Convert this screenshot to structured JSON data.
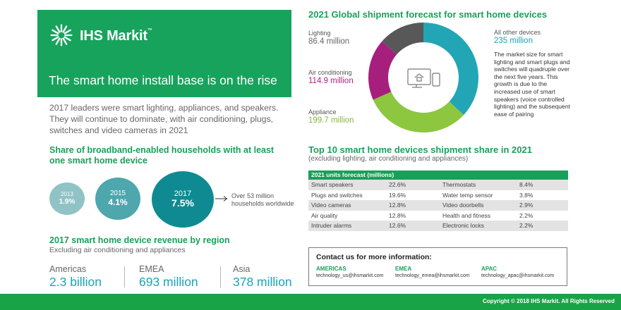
{
  "hero": {
    "brand": "IHS Markit",
    "title": "The smart home install base is on the rise",
    "colors": {
      "background": "#17a35c"
    }
  },
  "intro": "2017 leaders were smart lighting, appliances, and speakers. They will continue to dominate, with air conditioning, plugs, switches and video cameras in 2021",
  "broadband": {
    "title": "Share of broadband-enabled households with at least one smart home device",
    "bubbles": [
      {
        "year": "2013",
        "value": "1.9%",
        "color": "#8fc3c6"
      },
      {
        "year": "2015",
        "value": "4.1%",
        "color": "#4da7ad"
      },
      {
        "year": "2017",
        "value": "7.5%",
        "color": "#0f8a92"
      }
    ],
    "note": "Over 53 million households worldwide"
  },
  "revenue": {
    "title": "2017 smart home device revenue by region",
    "subtitle": "Excluding air conditioning and appliances",
    "regions": [
      {
        "name": "Americas",
        "value": "2.3 billion"
      },
      {
        "name": "EMEA",
        "value": "693 million"
      },
      {
        "name": "Asia",
        "value": "378 million"
      }
    ]
  },
  "forecast": {
    "title": "2021 Global shipment forecast for smart home devices",
    "segments": [
      {
        "label": "All other devices",
        "value": "235 million",
        "amount": 235,
        "color": "#22a6b6"
      },
      {
        "label": "Appliance",
        "value": "199.7 million",
        "amount": 199.7,
        "color": "#8dc63f"
      },
      {
        "label": "Air conditioning",
        "value": "114.9 million",
        "amount": 114.9,
        "color": "#a61f7d"
      },
      {
        "label": "Lighting",
        "value": "86.4 million",
        "amount": 86.4,
        "color": "#585858"
      }
    ],
    "note": "The market size for smart lighting and smart plugs and switches will quadruple over the next five years. This growth is due to the increased use of smart speakers (voice controlled lighting) and the subsequent ease of pairing"
  },
  "top10": {
    "title": "Top 10 smart home devices shipment share in 2021",
    "subtitle": "(excluding lighting, air conditioning and appliances)",
    "table_header": "2021 units forecast (millions)",
    "rows": [
      {
        "left_name": "Smart speakers",
        "left_value": "22.6%",
        "right_name": "Thermostats",
        "right_value": "8.4%"
      },
      {
        "left_name": "Plugs and switches",
        "left_value": "19.6%",
        "right_name": "Water temp sensor",
        "right_value": "3.8%"
      },
      {
        "left_name": "Video cameras",
        "left_value": "12.8%",
        "right_name": "Video doorbells",
        "right_value": "2.9%"
      },
      {
        "left_name": "Air quality",
        "left_value": "12.8%",
        "right_name": "Health and fitness",
        "right_value": "2.2%"
      },
      {
        "left_name": "Intruder alarms",
        "left_value": "12.6%",
        "right_name": "Electronic locks",
        "right_value": "2.2%"
      }
    ]
  },
  "contact": {
    "title": "Contact us for more information:",
    "regions": [
      {
        "region": "AMERICAS",
        "email": "technology_us@ihsmarkit.com"
      },
      {
        "region": "EMEA",
        "email": "technology_emea@ihsmarkit.com"
      },
      {
        "region": "APAC",
        "email": "technology_apac@ihsmarkit.com"
      }
    ]
  },
  "footer": {
    "copyright": "Copyright © 2018 IHS Markit. All Rights Reserved",
    "color": "#18a346"
  }
}
